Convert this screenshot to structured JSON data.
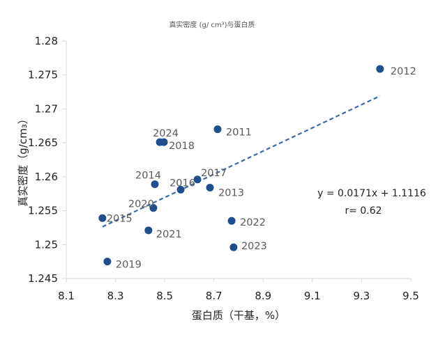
{
  "chart_data": {
    "type": "scatter",
    "title": "真实密度 (g/ cm³)与蛋白质",
    "xlabel": "蛋白质（干基，%）",
    "ylabel": "真实密度（g/cm₃）",
    "xlim": [
      8.1,
      9.5
    ],
    "ylim": [
      1.245,
      1.28
    ],
    "x_ticks": [
      "8.1",
      "8.3",
      "8.5",
      "8.7",
      "8.9",
      "9.1",
      "9.3",
      "9.5"
    ],
    "y_ticks": [
      "1.245",
      "1.25",
      "1.255",
      "1.26",
      "1.265",
      "1.27",
      "1.275",
      "1.28"
    ],
    "grid": false,
    "marker_color": "#1f4e8c",
    "trendline_color": "#3a6aa6",
    "points": [
      {
        "label": "2012",
        "x": 9.375,
        "y": 1.2759
      },
      {
        "label": "2011",
        "x": 8.715,
        "y": 1.267
      },
      {
        "label": "2024",
        "x": 8.48,
        "y": 1.2651
      },
      {
        "label": "2018",
        "x": 8.497,
        "y": 1.2651
      },
      {
        "label": "2014",
        "x": 8.46,
        "y": 1.2589
      },
      {
        "label": "2016",
        "x": 8.565,
        "y": 1.2581
      },
      {
        "label": "2017",
        "x": 8.633,
        "y": 1.2596
      },
      {
        "label": "2013",
        "x": 8.684,
        "y": 1.2584
      },
      {
        "label": "2020",
        "x": 8.454,
        "y": 1.2554
      },
      {
        "label": "2015",
        "x": 8.247,
        "y": 1.2539
      },
      {
        "label": "2021",
        "x": 8.434,
        "y": 1.2521
      },
      {
        "label": "2022",
        "x": 8.772,
        "y": 1.2535
      },
      {
        "label": "2023",
        "x": 8.78,
        "y": 1.2496
      },
      {
        "label": "2019",
        "x": 8.267,
        "y": 1.2475
      }
    ],
    "trendline": {
      "type": "linear",
      "slope": 0.0171,
      "intercept": 1.1116,
      "x_range": [
        8.247,
        9.375
      ],
      "style": "dashed"
    },
    "annotations": {
      "equation": "y = 0.0171x + 1.1116",
      "r": "r= 0.62"
    }
  }
}
